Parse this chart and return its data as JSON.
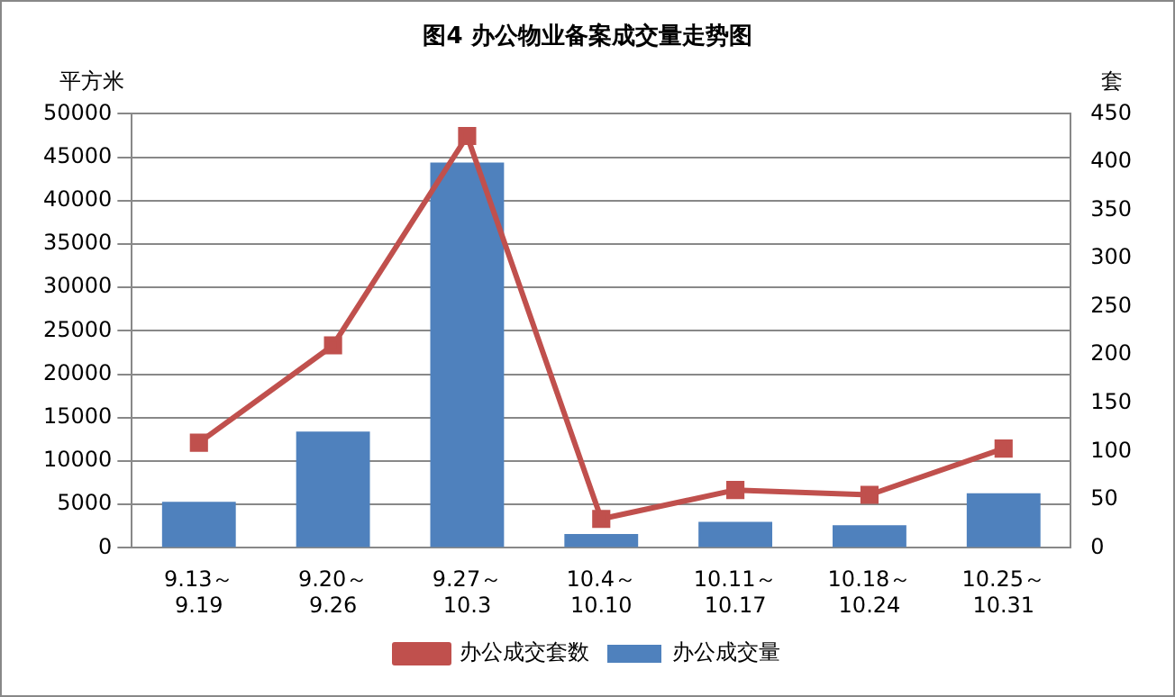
{
  "chart_data": {
    "type": "bar",
    "title": "图4   办公物业备案成交量走势图",
    "ylabel": "平方米",
    "y2label": "套",
    "categories": [
      "9.13～9.19",
      "9.20～9.26",
      "9.27～10.3",
      "10.4～10.10",
      "10.11～10.17",
      "10.18～10.24",
      "10.25～10.31"
    ],
    "series": [
      {
        "name": "办公成交量",
        "color": "#4f81bd",
        "values": [
          5300,
          13400,
          44400,
          1600,
          3000,
          2600,
          6300
        ]
      },
      {
        "name": "办公成交套数",
        "type": "line",
        "axis": "y2",
        "color": "#c0504d",
        "marker": "square",
        "values": [
          109,
          210,
          427,
          30,
          60,
          55,
          103
        ]
      }
    ],
    "ylim": [
      0,
      50000
    ],
    "yticks": [
      0,
      5000,
      10000,
      15000,
      20000,
      25000,
      30000,
      35000,
      40000,
      45000,
      50000
    ],
    "y2lim": [
      0,
      450
    ],
    "y2ticks": [
      0,
      50,
      100,
      150,
      200,
      250,
      300,
      350,
      400,
      450
    ],
    "grid": "y",
    "legend": "bottom"
  }
}
